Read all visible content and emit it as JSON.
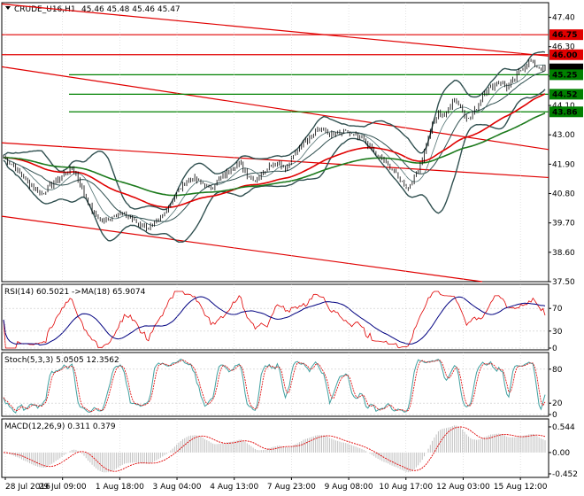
{
  "chart_data": [
    {
      "type": "line",
      "panel": "price",
      "header": {
        "symbol": "CRUDE_U16,H1",
        "ohlc": "45.46 45.48 45.46 45.47"
      },
      "y_ticks": [
        "47.40",
        "46.30",
        "45.20",
        "44.10",
        "43.00",
        "41.90",
        "40.80",
        "39.70",
        "38.60",
        "37.50"
      ],
      "ylim": [
        37.5,
        47.95
      ],
      "x_tick_labels": [
        "28 Jul 2016",
        "29 Jul 09:00",
        "1 Aug 18:00",
        "3 Aug 04:00",
        "4 Aug 13:00",
        "7 Aug 23:00",
        "9 Aug 08:00",
        "10 Aug 17:00",
        "12 Aug 03:00",
        "15 Aug 12:00"
      ],
      "level_tags": [
        {
          "text": "46.75",
          "value": 46.75,
          "color": "#e00000"
        },
        {
          "text": "46.00",
          "value": 46.0,
          "color": "#e00000"
        },
        {
          "text": "45.47",
          "value": 45.47,
          "color": "#000000"
        },
        {
          "text": "45.25",
          "value": 45.25,
          "color": "#008000"
        },
        {
          "text": "44.52",
          "value": 44.52,
          "color": "#008000"
        },
        {
          "text": "43.86",
          "value": 43.86,
          "color": "#008000"
        }
      ],
      "close_anchors": [
        42.15,
        41.9,
        41.6,
        41.3,
        41.0,
        40.8,
        41.05,
        41.3,
        41.55,
        41.8,
        41.2,
        40.5,
        40.0,
        39.75,
        39.9,
        40.1,
        40.0,
        39.8,
        39.6,
        39.5,
        39.7,
        40.0,
        40.5,
        40.95,
        41.3,
        41.35,
        41.2,
        41.0,
        41.25,
        41.5,
        41.8,
        41.95,
        41.5,
        41.3,
        41.6,
        41.9,
        42.0,
        41.7,
        42.2,
        42.65,
        42.9,
        43.2,
        43.15,
        43.0,
        43.05,
        43.1,
        42.95,
        42.85,
        42.55,
        42.2,
        42.0,
        41.7,
        41.3,
        41.0,
        41.5,
        42.2,
        43.2,
        43.85,
        43.7,
        44.4,
        44.0,
        43.55,
        44.0,
        44.6,
        44.8,
        45.0,
        44.75,
        45.1,
        45.5,
        45.8,
        45.55,
        45.47
      ]
    },
    {
      "type": "line",
      "panel": "rsi",
      "header": "RSI(14) 60.5021 ->MA(18) 65.9074",
      "y_ticks": [
        "70",
        "30",
        "0"
      ],
      "ylim": [
        0,
        100
      ]
    },
    {
      "type": "line",
      "panel": "stochastic",
      "header": "Stoch(5,3,3) 5.0505 12.3562",
      "y_ticks": [
        "80",
        "20",
        "0"
      ],
      "ylim": [
        0,
        100
      ]
    },
    {
      "type": "bar",
      "panel": "macd",
      "header": "MACD(12,26,9) 0.311 0.379",
      "y_ticks": [
        "0.544",
        "0.00",
        "-0.452"
      ],
      "ylim": [
        -0.49,
        0.6
      ]
    }
  ],
  "colors": {
    "price": "#000000",
    "bollinger": "#2f4f4f",
    "ma_red": "#e00000",
    "ma_green": "#1c7a1c",
    "resistance": "#e00000",
    "support": "#008000",
    "rsi_main": "#e00000",
    "rsi_ma": "#000080",
    "stoch_main": "#40a0a0",
    "stoch_signal": "#e00000",
    "macd_hist": "#c0c0c0",
    "macd_signal": "#e00000",
    "grid": "#c8c8c8"
  }
}
